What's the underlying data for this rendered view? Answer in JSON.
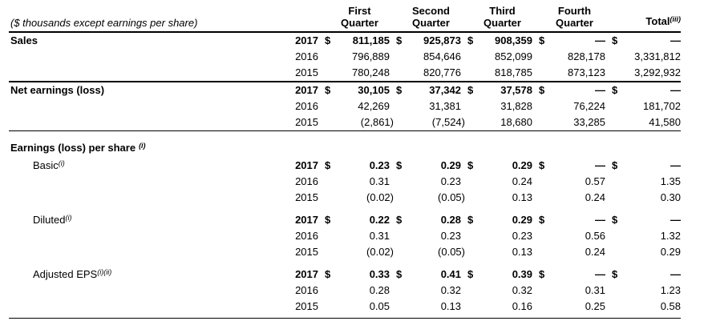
{
  "page": {
    "note": "($ thousands except earnings per share)",
    "currency_symbol": "$",
    "columns": [
      {
        "line1": "First",
        "line2": "Quarter",
        "sup": ""
      },
      {
        "line1": "Second",
        "line2": "Quarter",
        "sup": ""
      },
      {
        "line1": "Third",
        "line2": "Quarter",
        "sup": ""
      },
      {
        "line1": "Fourth",
        "line2": "Quarter",
        "sup": ""
      },
      {
        "line1": "Total",
        "line2": "",
        "sup": "(iii)"
      }
    ],
    "sections": [
      {
        "label": "Sales",
        "sup": "",
        "label_bold": true,
        "indent": false,
        "divider": "thick",
        "header_only": false,
        "gap_after": false,
        "rows": [
          {
            "year": "2017",
            "bold": true,
            "dollar": true,
            "values": [
              "811,185",
              "925,873",
              "908,359",
              "—",
              "—"
            ]
          },
          {
            "year": "2016",
            "bold": false,
            "dollar": false,
            "values": [
              "796,889",
              "854,646",
              "852,099",
              "828,178",
              "3,331,812"
            ]
          },
          {
            "year": "2015",
            "bold": false,
            "dollar": false,
            "values": [
              "780,248",
              "820,776",
              "818,785",
              "873,123",
              "3,292,932"
            ]
          }
        ]
      },
      {
        "label": "Net earnings (loss)",
        "sup": "",
        "label_bold": true,
        "indent": false,
        "divider": "thin",
        "header_only": false,
        "gap_after": false,
        "rows": [
          {
            "year": "2017",
            "bold": true,
            "dollar": true,
            "values": [
              "30,105",
              "37,342",
              "37,578",
              "—",
              "—"
            ]
          },
          {
            "year": "2016",
            "bold": false,
            "dollar": false,
            "values": [
              "42,269",
              "31,381",
              "31,828",
              "76,224",
              "181,702"
            ]
          },
          {
            "year": "2015",
            "bold": false,
            "dollar": false,
            "values": [
              "(2,861)",
              "(7,524)",
              "18,680",
              "33,285",
              "41,580"
            ]
          }
        ]
      },
      {
        "label": "Earnings (loss) per share",
        "sup": "(i)",
        "sup_space": true,
        "label_bold": true,
        "indent": false,
        "divider": "none",
        "header_only": true,
        "gap_after": false,
        "rows": []
      },
      {
        "label": "Basic",
        "sup": "(i)",
        "label_bold": false,
        "indent": true,
        "divider": "none",
        "header_only": false,
        "gap_after": true,
        "rows": [
          {
            "year": "2017",
            "bold": true,
            "dollar": true,
            "values": [
              "0.23",
              "0.29",
              "0.29",
              "—",
              "—"
            ]
          },
          {
            "year": "2016",
            "bold": false,
            "dollar": false,
            "values": [
              "0.31",
              "0.23",
              "0.24",
              "0.57",
              "1.35"
            ]
          },
          {
            "year": "2015",
            "bold": false,
            "dollar": false,
            "values": [
              "(0.02)",
              "(0.05)",
              "0.13",
              "0.24",
              "0.30"
            ]
          }
        ]
      },
      {
        "label": "Diluted",
        "sup": "(i)",
        "label_bold": false,
        "indent": true,
        "divider": "none",
        "header_only": false,
        "gap_after": true,
        "rows": [
          {
            "year": "2017",
            "bold": true,
            "dollar": true,
            "values": [
              "0.22",
              "0.28",
              "0.29",
              "—",
              "—"
            ]
          },
          {
            "year": "2016",
            "bold": false,
            "dollar": false,
            "values": [
              "0.31",
              "0.23",
              "0.23",
              "0.56",
              "1.32"
            ]
          },
          {
            "year": "2015",
            "bold": false,
            "dollar": false,
            "values": [
              "(0.02)",
              "(0.05)",
              "0.13",
              "0.24",
              "0.29"
            ]
          }
        ]
      },
      {
        "label": "Adjusted EPS",
        "sup": "(i)(ii)",
        "label_bold": false,
        "indent": true,
        "divider": "thin",
        "header_only": false,
        "gap_after": false,
        "pad_end": true,
        "rows": [
          {
            "year": "2017",
            "bold": true,
            "dollar": true,
            "values": [
              "0.33",
              "0.41",
              "0.39",
              "—",
              "—"
            ]
          },
          {
            "year": "2016",
            "bold": false,
            "dollar": false,
            "values": [
              "0.28",
              "0.32",
              "0.32",
              "0.31",
              "1.23"
            ]
          },
          {
            "year": "2015",
            "bold": false,
            "dollar": false,
            "values": [
              "0.05",
              "0.13",
              "0.16",
              "0.25",
              "0.58"
            ]
          }
        ]
      }
    ]
  }
}
